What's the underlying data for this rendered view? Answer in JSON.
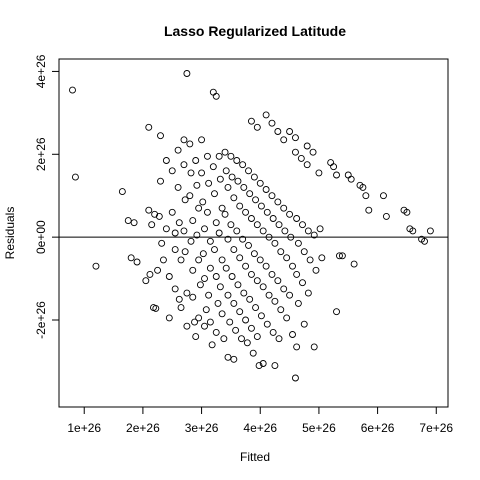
{
  "chart_data": {
    "type": "scatter",
    "title": "Lasso Regularized Latitude",
    "xlabel": "Fitted",
    "ylabel": "Residuals",
    "xlim": [
      5.7e+25,
      7.2e+26
    ],
    "ylim": [
      -4.1e+26,
      4.3e+26
    ],
    "x_ticks": [
      {
        "value": 1e+26,
        "label": "1e+26"
      },
      {
        "value": 2e+26,
        "label": "2e+26"
      },
      {
        "value": 3e+26,
        "label": "3e+26"
      },
      {
        "value": 4e+26,
        "label": "4e+26"
      },
      {
        "value": 5e+26,
        "label": "5e+26"
      },
      {
        "value": 6e+26,
        "label": "6e+26"
      },
      {
        "value": 7e+26,
        "label": "7e+26"
      }
    ],
    "y_ticks": [
      {
        "value": -2e+26,
        "label": "-2e+26"
      },
      {
        "value": 0,
        "label": "0e+00"
      },
      {
        "value": 2e+26,
        "label": "2e+26"
      },
      {
        "value": 4e+26,
        "label": "4e+26"
      }
    ],
    "reference_line_y": 0,
    "grid": false,
    "legend": "none",
    "marker": "open-circle",
    "points": [
      [
        8e+25,
        3.55e+26
      ],
      [
        8.5e+25,
        1.45e+26
      ],
      [
        1.2e+26,
        -7e+25
      ],
      [
        1.65e+26,
        1.1e+26
      ],
      [
        1.75e+26,
        4e+25
      ],
      [
        1.8e+26,
        -5e+25
      ],
      [
        1.85e+26,
        3.5e+25
      ],
      [
        1.9e+26,
        -6e+25
      ],
      [
        2.1e+26,
        2.65e+26
      ],
      [
        2.05e+26,
        -1.05e+26
      ],
      [
        2.1e+26,
        6.5e+25
      ],
      [
        2.15e+26,
        3e+25
      ],
      [
        2.12e+26,
        -9e+25
      ],
      [
        2.2e+26,
        5.5e+25
      ],
      [
        2.25e+26,
        -8e+25
      ],
      [
        2.18e+26,
        -1.7e+26
      ],
      [
        2.22e+26,
        -1.72e+26
      ],
      [
        2.3e+26,
        2.45e+26
      ],
      [
        2.3e+26,
        1.35e+26
      ],
      [
        2.28e+26,
        5e+25
      ],
      [
        2.32e+26,
        -1.5e+25
      ],
      [
        2.35e+26,
        -5.5e+25
      ],
      [
        2.4e+26,
        1.85e+26
      ],
      [
        2.4e+26,
        2e+25
      ],
      [
        2.45e+26,
        -9.5e+25
      ],
      [
        2.45e+26,
        -1.95e+26
      ],
      [
        2.5e+26,
        1.6e+26
      ],
      [
        2.5e+26,
        6e+25
      ],
      [
        2.55e+26,
        1e+25
      ],
      [
        2.55e+26,
        -3e+25
      ],
      [
        2.55e+26,
        -1.25e+26
      ],
      [
        2.6e+26,
        2.1e+26
      ],
      [
        2.6e+26,
        1.2e+26
      ],
      [
        2.62e+26,
        3.5e+25
      ],
      [
        2.65e+26,
        -5.5e+25
      ],
      [
        2.62e+26,
        -1.5e+26
      ],
      [
        2.65e+26,
        -1.7e+26
      ],
      [
        2.7e+26,
        2.35e+26
      ],
      [
        2.7e+26,
        1.75e+26
      ],
      [
        2.72e+26,
        9e+25
      ],
      [
        2.7e+26,
        1.5e+25
      ],
      [
        2.72e+26,
        -3.5e+25
      ],
      [
        2.75e+26,
        -1.35e+26
      ],
      [
        2.75e+26,
        -2.15e+26
      ],
      [
        2.75e+26,
        3.95e+26
      ],
      [
        2.8e+26,
        2.25e+26
      ],
      [
        2.82e+26,
        1.55e+26
      ],
      [
        2.8e+26,
        1e+26
      ],
      [
        2.85e+26,
        4e+25
      ],
      [
        2.82e+26,
        -1e+25
      ],
      [
        2.85e+26,
        -8e+25
      ],
      [
        2.85e+26,
        -1.45e+26
      ],
      [
        2.88e+26,
        -2.05e+26
      ],
      [
        2.9e+26,
        -2.4e+26
      ],
      [
        2.9e+26,
        1.85e+26
      ],
      [
        2.92e+26,
        1.25e+26
      ],
      [
        2.95e+26,
        7e+25
      ],
      [
        2.92e+26,
        5e+24
      ],
      [
        2.95e+26,
        -5.5e+25
      ],
      [
        2.98e+26,
        -1.15e+26
      ],
      [
        2.95e+26,
        -1.95e+26
      ],
      [
        3e+26,
        2.35e+26
      ],
      [
        3e+26,
        1.55e+26
      ],
      [
        3.02e+26,
        8.5e+25
      ],
      [
        3.05e+26,
        2e+25
      ],
      [
        3.03e+26,
        -4e+25
      ],
      [
        3.05e+26,
        -1e+26
      ],
      [
        3.08e+26,
        -1.75e+26
      ],
      [
        3.05e+26,
        -2.15e+26
      ],
      [
        3.1e+26,
        1.95e+26
      ],
      [
        3.12e+26,
        1.3e+26
      ],
      [
        3.1e+26,
        6e+25
      ],
      [
        3.15e+26,
        -1e+25
      ],
      [
        3.15e+26,
        -7.5e+25
      ],
      [
        3.12e+26,
        -1.4e+26
      ],
      [
        3.15e+26,
        -2.05e+26
      ],
      [
        3.18e+26,
        -2.6e+26
      ],
      [
        3.2e+26,
        3.5e+26
      ],
      [
        3.25e+26,
        3.4e+26
      ],
      [
        3.2e+26,
        1.7e+26
      ],
      [
        3.22e+26,
        1.05e+26
      ],
      [
        3.25e+26,
        3.5e+25
      ],
      [
        3.22e+26,
        -3e+25
      ],
      [
        3.25e+26,
        -9.5e+25
      ],
      [
        3.28e+26,
        -1.6e+26
      ],
      [
        3.25e+26,
        -2.3e+26
      ],
      [
        3.3e+26,
        1.95e+26
      ],
      [
        3.32e+26,
        1.4e+26
      ],
      [
        3.35e+26,
        7e+25
      ],
      [
        3.3e+26,
        1e+25
      ],
      [
        3.35e+26,
        -5.5e+25
      ],
      [
        3.32e+26,
        -1.2e+26
      ],
      [
        3.35e+26,
        -1.85e+26
      ],
      [
        3.38e+26,
        -2.45e+26
      ],
      [
        3.4e+26,
        2.05e+26
      ],
      [
        3.42e+26,
        1.6e+26
      ],
      [
        3.45e+26,
        1.2e+26
      ],
      [
        3.4e+26,
        5.5e+25
      ],
      [
        3.45e+26,
        -5e+24
      ],
      [
        3.42e+26,
        -7.5e+25
      ],
      [
        3.45e+26,
        -1.4e+26
      ],
      [
        3.48e+26,
        -2.05e+26
      ],
      [
        3.45e+26,
        -2.9e+26
      ],
      [
        3.5e+26,
        1.95e+26
      ],
      [
        3.52e+26,
        1.45e+26
      ],
      [
        3.55e+26,
        9.5e+25
      ],
      [
        3.5e+26,
        3e+25
      ],
      [
        3.55e+26,
        -3e+25
      ],
      [
        3.52e+26,
        -9.5e+25
      ],
      [
        3.55e+26,
        -1.6e+26
      ],
      [
        3.58e+26,
        -2.25e+26
      ],
      [
        3.55e+26,
        -2.95e+26
      ],
      [
        3.6e+26,
        1.85e+26
      ],
      [
        3.62e+26,
        1.35e+26
      ],
      [
        3.65e+26,
        7.5e+25
      ],
      [
        3.6e+26,
        1.5e+25
      ],
      [
        3.65e+26,
        -5e+25
      ],
      [
        3.62e+26,
        -1.15e+26
      ],
      [
        3.65e+26,
        -1.8e+26
      ],
      [
        3.68e+26,
        -2.45e+26
      ],
      [
        3.7e+26,
        1.75e+26
      ],
      [
        3.72e+26,
        1.2e+26
      ],
      [
        3.75e+26,
        6e+25
      ],
      [
        3.7e+26,
        -5e+24
      ],
      [
        3.75e+26,
        -7e+25
      ],
      [
        3.72e+26,
        -1.35e+26
      ],
      [
        3.75e+26,
        -2e+26
      ],
      [
        3.78e+26,
        -2.55e+26
      ],
      [
        3.8e+26,
        1.6e+26
      ],
      [
        3.82e+26,
        1.05e+26
      ],
      [
        3.85e+26,
        4.5e+25
      ],
      [
        3.8e+26,
        -2e+25
      ],
      [
        3.85e+26,
        -9e+25
      ],
      [
        3.82e+26,
        -1.5e+26
      ],
      [
        3.85e+26,
        -2.2e+26
      ],
      [
        3.88e+26,
        -2.8e+26
      ],
      [
        3.85e+26,
        2.8e+26
      ],
      [
        3.9e+26,
        1.45e+26
      ],
      [
        3.92e+26,
        9e+25
      ],
      [
        3.95e+26,
        3e+25
      ],
      [
        3.9e+26,
        -4e+25
      ],
      [
        3.95e+26,
        -1.05e+26
      ],
      [
        3.92e+26,
        -1.7e+26
      ],
      [
        3.95e+26,
        -2.4e+26
      ],
      [
        3.98e+26,
        -3.1e+26
      ],
      [
        3.95e+26,
        2.65e+26
      ],
      [
        4e+26,
        1.3e+26
      ],
      [
        4.02e+26,
        7.5e+25
      ],
      [
        4.05e+26,
        1.5e+25
      ],
      [
        4e+26,
        -5.5e+25
      ],
      [
        4.05e+26,
        -1.2e+26
      ],
      [
        4.02e+26,
        -1.9e+26
      ],
      [
        4.05e+26,
        -3.05e+26
      ],
      [
        4.1e+26,
        2.95e+26
      ],
      [
        4.1e+26,
        1.15e+26
      ],
      [
        4.12e+26,
        6e+25
      ],
      [
        4.15e+26,
        0.0
      ],
      [
        4.1e+26,
        -7e+25
      ],
      [
        4.15e+26,
        -1.4e+26
      ],
      [
        4.12e+26,
        -2.1e+26
      ],
      [
        4.2e+26,
        2.75e+26
      ],
      [
        4.2e+26,
        1e+26
      ],
      [
        4.22e+26,
        4.5e+25
      ],
      [
        4.25e+26,
        -1.5e+25
      ],
      [
        4.2e+26,
        -9e+25
      ],
      [
        4.25e+26,
        -1.55e+26
      ],
      [
        4.22e+26,
        -2.3e+26
      ],
      [
        4.25e+26,
        -3.1e+26
      ],
      [
        4.3e+26,
        2.55e+26
      ],
      [
        4.3e+26,
        8.5e+25
      ],
      [
        4.32e+26,
        3e+25
      ],
      [
        4.35e+26,
        -3.5e+25
      ],
      [
        4.3e+26,
        -1.05e+26
      ],
      [
        4.35e+26,
        -1.75e+26
      ],
      [
        4.32e+26,
        -2.45e+26
      ],
      [
        4.4e+26,
        2.35e+26
      ],
      [
        4.4e+26,
        7e+25
      ],
      [
        4.42e+26,
        1.5e+25
      ],
      [
        4.45e+26,
        -5e+25
      ],
      [
        4.4e+26,
        -1.25e+26
      ],
      [
        4.45e+26,
        -1.95e+26
      ],
      [
        4.5e+26,
        2.55e+26
      ],
      [
        4.5e+26,
        5.5e+25
      ],
      [
        4.52e+26,
        0.0
      ],
      [
        4.55e+26,
        -7e+25
      ],
      [
        4.5e+26,
        -1.4e+26
      ],
      [
        4.55e+26,
        -2.35e+26
      ],
      [
        4.6e+26,
        2.4e+26
      ],
      [
        4.6e+26,
        2.05e+26
      ],
      [
        4.62e+26,
        4.5e+25
      ],
      [
        4.65e+26,
        -1.5e+25
      ],
      [
        4.62e+26,
        -9e+25
      ],
      [
        4.65e+26,
        -1.6e+26
      ],
      [
        4.62e+26,
        -2.65e+26
      ],
      [
        4.6e+26,
        -3.4e+26
      ],
      [
        4.7e+26,
        1.9e+26
      ],
      [
        4.72e+26,
        3e+25
      ],
      [
        4.75e+26,
        -3.5e+25
      ],
      [
        4.72e+26,
        -1.1e+26
      ],
      [
        4.75e+26,
        -2.1e+26
      ],
      [
        4.8e+26,
        2.2e+26
      ],
      [
        4.8e+26,
        1.75e+26
      ],
      [
        4.82e+26,
        1.5e+25
      ],
      [
        4.85e+26,
        -5.5e+25
      ],
      [
        4.82e+26,
        -1.35e+26
      ],
      [
        4.9e+26,
        2.05e+26
      ],
      [
        4.92e+26,
        5e+24
      ],
      [
        4.95e+26,
        -8e+25
      ],
      [
        4.92e+26,
        -2.65e+26
      ],
      [
        5e+26,
        1.55e+26
      ],
      [
        5.02e+26,
        2e+25
      ],
      [
        5.05e+26,
        -5e+25
      ],
      [
        5.2e+26,
        1.8e+26
      ],
      [
        5.25e+26,
        1.7e+26
      ],
      [
        5.3e+26,
        1.5e+26
      ],
      [
        5.35e+26,
        -4.5e+25
      ],
      [
        5.3e+26,
        -1.8e+26
      ],
      [
        5.4e+26,
        -4.5e+25
      ],
      [
        5.5e+26,
        1.5e+26
      ],
      [
        5.55e+26,
        1.4e+26
      ],
      [
        5.6e+26,
        -6.5e+25
      ],
      [
        5.7e+26,
        1.25e+26
      ],
      [
        5.75e+26,
        1.2e+26
      ],
      [
        5.8e+26,
        1e+26
      ],
      [
        5.85e+26,
        6.5e+25
      ],
      [
        6.1e+26,
        1e+26
      ],
      [
        6.15e+26,
        5e+25
      ],
      [
        6.45e+26,
        6.5e+25
      ],
      [
        6.5e+26,
        6e+25
      ],
      [
        6.55e+26,
        2e+25
      ],
      [
        6.6e+26,
        1.5e+25
      ],
      [
        6.75e+26,
        -5e+24
      ],
      [
        6.8e+26,
        -1e+25
      ],
      [
        6.9e+26,
        1.5e+25
      ]
    ]
  }
}
